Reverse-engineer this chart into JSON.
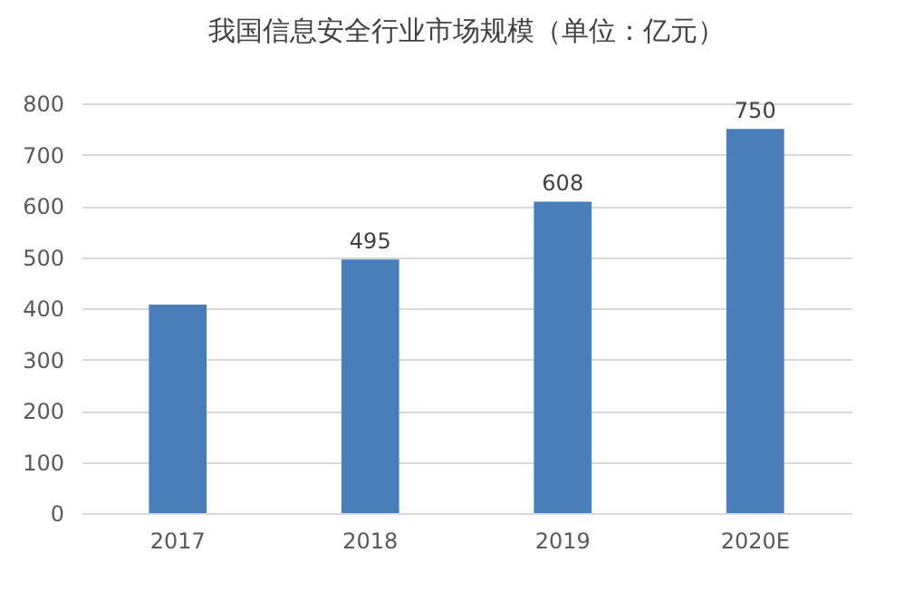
{
  "chart_data": {
    "type": "bar",
    "title": "我国信息安全行业市场规模（单位：亿元）",
    "categories": [
      "2017",
      "2018",
      "2019",
      "2020E"
    ],
    "values": [
      407,
      495,
      608,
      750
    ],
    "value_labels": [
      null,
      "495",
      "608",
      "750"
    ],
    "color": "#4a7ebb",
    "ylim": [
      0,
      800
    ],
    "yticks": [
      0,
      100,
      200,
      300,
      400,
      500,
      600,
      700,
      800
    ],
    "grid": "y"
  }
}
